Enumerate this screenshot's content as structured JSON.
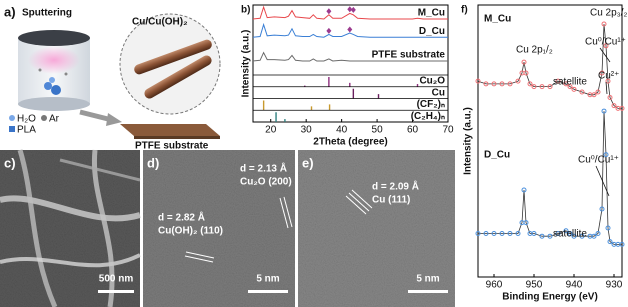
{
  "panel_a": {
    "label": "a)",
    "title": "Sputtering",
    "product": "Cu/Cu(OH)₂",
    "substrate": "PTFE substrate",
    "legend": [
      "H₂O",
      "Ar",
      "PLA"
    ]
  },
  "chart_data": [
    {
      "type": "line",
      "label": "b)",
      "x_label": "2Theta (degree)",
      "y_label": "Intensity (a.u.)",
      "xlim": [
        15,
        70
      ],
      "xticks": [
        20,
        30,
        40,
        50,
        60,
        70
      ],
      "ylim": [
        0,
        100
      ],
      "x": [
        15,
        17,
        18,
        19,
        21,
        24,
        25,
        26,
        27,
        29,
        31,
        32,
        33,
        35,
        36.4,
        37.5,
        40,
        42.3,
        43.3,
        44.5,
        48,
        50.4,
        52,
        55,
        60,
        61.4,
        63,
        66,
        70
      ],
      "series": [
        {
          "name": "M_Cu",
          "color": "#e8474b",
          "values": [
            80,
            81,
            97,
            82,
            83,
            82,
            84,
            92,
            83,
            82,
            81,
            86,
            81,
            80,
            86,
            81,
            81,
            88,
            86,
            81,
            80,
            80,
            80,
            80,
            80,
            81,
            80,
            80,
            80
          ]
        },
        {
          "name": "D_Cu",
          "color": "#3a7fd5",
          "values": [
            54,
            55,
            72,
            56,
            57,
            56,
            57,
            66,
            56,
            55,
            55,
            58,
            55,
            54,
            58,
            55,
            55,
            60,
            58,
            55,
            54,
            54,
            54,
            54,
            54,
            54,
            54,
            54,
            54
          ]
        },
        {
          "name": "PTFE substrate",
          "color": "#6b6b6b",
          "values": [
            20,
            21,
            32,
            22,
            22,
            21,
            22,
            28,
            21,
            20,
            20,
            23,
            20,
            20,
            23,
            20,
            21,
            20,
            20,
            20,
            20,
            20,
            20,
            20,
            20,
            20,
            20,
            20,
            20
          ]
        }
      ],
      "markers": {
        "color": "#9b3b8f",
        "x": [
          36.4,
          42.3,
          43.3,
          36.4,
          42.3
        ],
        "values": [
          91,
          94,
          93,
          63,
          65
        ]
      },
      "reference_ylim": [
        0,
        100
      ],
      "references": [
        {
          "name": "Cu₂O",
          "color": "#8e2f7e",
          "x": [
            29.6,
            36.4,
            42.3,
            61.4
          ],
          "values": [
            12,
            100,
            40,
            28
          ]
        },
        {
          "name": "Cu",
          "color": "#6a1f5e",
          "x": [
            43.3,
            50.4
          ],
          "values": [
            100,
            45
          ]
        },
        {
          "name": "(CF₂)ₙ",
          "color": "#c89a2e",
          "x": [
            18,
            31.5,
            36.6
          ],
          "values": [
            100,
            40,
            60
          ]
        },
        {
          "name": "(C₂H₄)ₙ",
          "color": "#2f7f7f",
          "x": [
            21.5,
            24
          ],
          "values": [
            100,
            30
          ]
        }
      ]
    },
    {
      "type": "scatter",
      "label": "f)",
      "x_label": "Binding Energy (eV)",
      "y_label": "Intensity (a.u.)",
      "xlim": [
        964,
        928
      ],
      "xticks": [
        960,
        950,
        940,
        930
      ],
      "ylim": [
        0,
        100
      ],
      "x": [
        964,
        962,
        960,
        958,
        956,
        954,
        953,
        952.5,
        952,
        951,
        950,
        948,
        946,
        944,
        942,
        941,
        940,
        938,
        936,
        935,
        934,
        933,
        932.5,
        932,
        931.5,
        931,
        930,
        929,
        928
      ],
      "series": [
        {
          "name": "M_Cu",
          "color": "#ef6f73",
          "values": [
            72,
            71,
            71,
            71,
            71,
            72,
            75,
            79,
            75,
            71,
            70,
            70,
            70,
            72,
            71,
            70,
            69,
            68,
            67,
            67,
            68,
            75,
            93,
            85,
            72,
            66,
            63,
            62,
            62
          ]
        },
        {
          "name": "D_Cu",
          "color": "#4a8fdc",
          "values": [
            16,
            16,
            16,
            16,
            16,
            16,
            20,
            32,
            20,
            16,
            16,
            15,
            15,
            16,
            17,
            16,
            15,
            15,
            15,
            15,
            16,
            25,
            61,
            45,
            18,
            13,
            12,
            12,
            12
          ]
        }
      ],
      "annotations": [
        "Cu 2p₃/₂",
        "Cu 2p₁/₂",
        "satellite",
        "Cu⁰/Cu¹⁺",
        "Cu²⁺",
        "Cu⁰/Cu¹⁺",
        "satellite"
      ]
    }
  ],
  "panel_c": {
    "label": "c)",
    "scale_bar": "500 nm"
  },
  "panel_d": {
    "label": "d)",
    "spacings": [
      {
        "d": "d = 2.13 Å",
        "plane": "Cu₂O (200)"
      },
      {
        "d": "d = 2.82 Å",
        "plane": "Cu(OH)₂ (110)"
      }
    ],
    "scale_bar": "5 nm"
  },
  "panel_e": {
    "label": "e)",
    "spacings": [
      {
        "d": "d = 2.09 Å",
        "plane": "Cu (111)"
      }
    ],
    "scale_bar": "5 nm"
  }
}
